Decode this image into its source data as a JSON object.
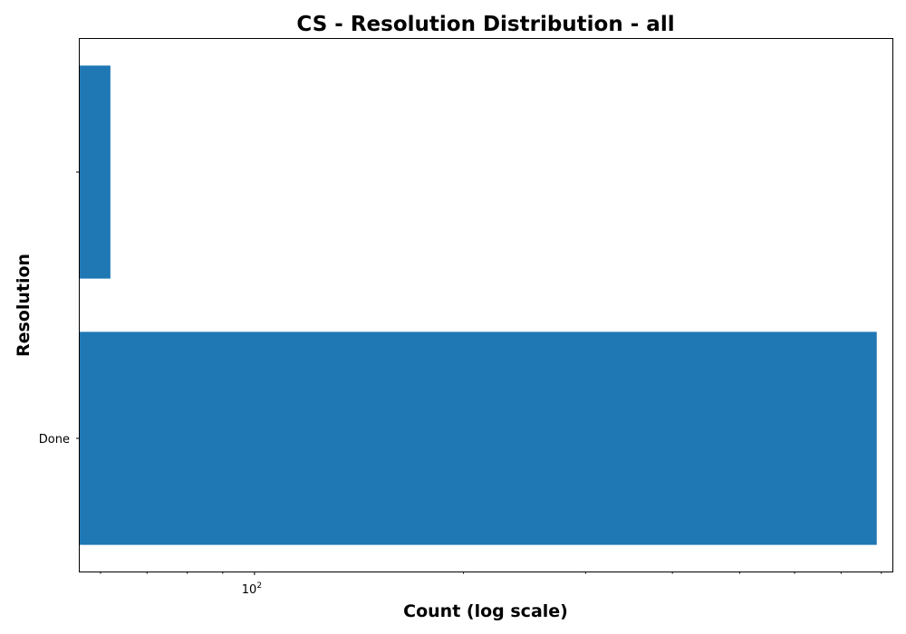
{
  "chart_data": {
    "type": "bar",
    "orientation": "horizontal",
    "title": "CS - Resolution Distribution - all",
    "xlabel": "Count (log scale)",
    "ylabel": "Resolution",
    "x_scale": "log",
    "xlim": [
      56,
      830
    ],
    "categories": [
      "Done",
      ""
    ],
    "values": [
      788,
      62
    ],
    "color": "#1f77b4",
    "x_tick_label": {
      "base": "10",
      "exp": "2"
    },
    "grid": false,
    "legend": "none"
  }
}
